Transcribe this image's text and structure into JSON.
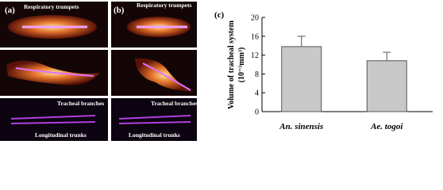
{
  "panels": [
    {
      "label": "(a)",
      "annotations": [
        "Respiratory trumpets",
        "Tracheal branches",
        "Longitudinal trunks"
      ]
    },
    {
      "label": "(b)",
      "annotations": [
        "Respiratory trumpets",
        "Tracheal branches",
        "Longitudinal trunks"
      ]
    }
  ],
  "chart_data": {
    "type": "bar",
    "panel_label": "(c)",
    "ylabel": [
      "Volume of tracheal system",
      "(10⁻³mm³)"
    ],
    "categories": [
      "An. sinensis",
      "Ae. togoi"
    ],
    "values": [
      13.8,
      10.8
    ],
    "errors": [
      2.2,
      1.8
    ],
    "color": "#c8c8c8",
    "ylim": [
      0,
      20
    ],
    "yticks": [
      0,
      4,
      8,
      12,
      16,
      20
    ]
  }
}
